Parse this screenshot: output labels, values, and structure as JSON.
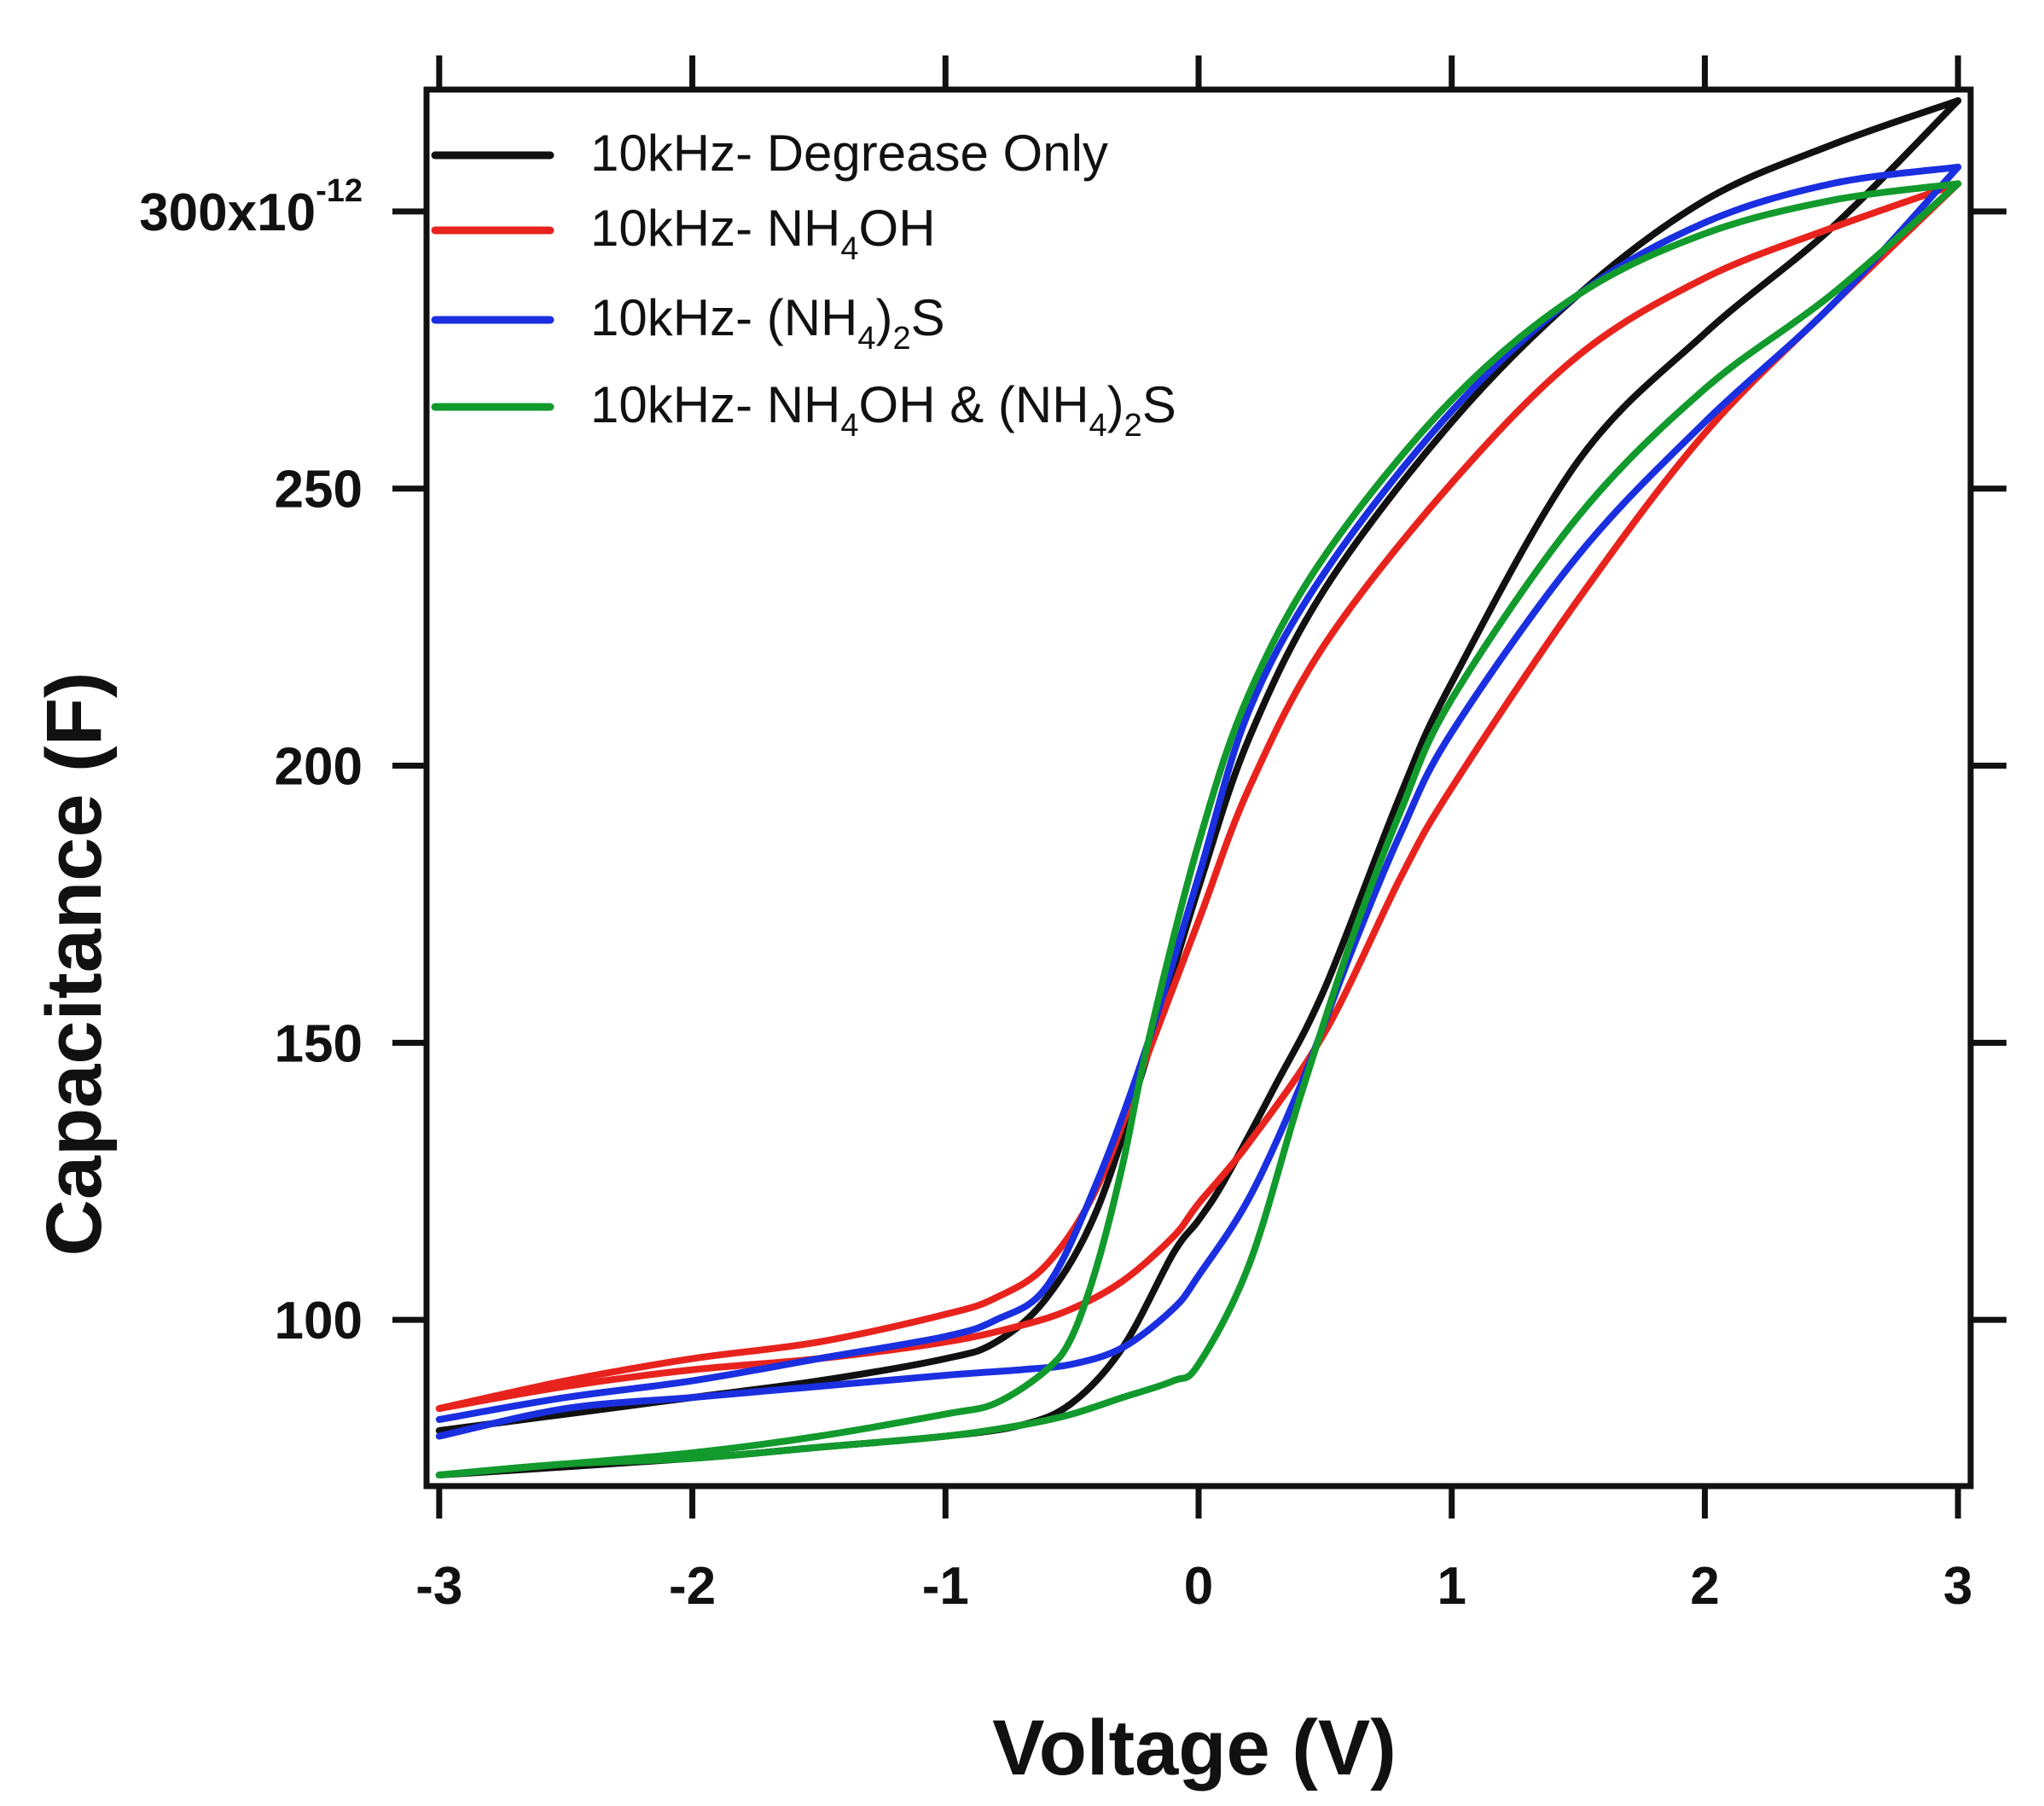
{
  "chart_data": {
    "type": "line",
    "xlabel": "Voltage (V)",
    "ylabel": "Capacitance (F)",
    "xlim": [
      -3.05,
      3.05
    ],
    "ylim": [
      70,
      322
    ],
    "x_ticks": [
      -3,
      -2,
      -1,
      0,
      1,
      2,
      3
    ],
    "x_tick_labels": [
      "-3",
      "-2",
      "-1",
      "0",
      "1",
      "2",
      "3"
    ],
    "y_ticks": [
      100,
      150,
      200,
      250,
      300
    ],
    "y_tick_labels": [
      "100",
      "150",
      "200",
      "250",
      "300"
    ],
    "y_top_label": {
      "base": "300x10",
      "exponent": "-12"
    },
    "legend": {
      "position": "top-left",
      "entries": [
        {
          "prefix": "10kHz- ",
          "parts": [
            "Degrease Only"
          ]
        },
        {
          "prefix": "10kHz- ",
          "parts": [
            "NH",
            "4",
            "OH"
          ]
        },
        {
          "prefix": "10kHz- ",
          "parts": [
            "(NH",
            "4",
            ")",
            "2",
            "S"
          ]
        },
        {
          "prefix": "10kHz- ",
          "parts": [
            "NH",
            "4",
            "OH & (NH",
            "4",
            ")",
            "2",
            "S"
          ]
        }
      ]
    },
    "series": [
      {
        "name": "10kHz- Degrease Only",
        "color": "#111111",
        "forward": {
          "x": [
            -3,
            -2,
            -1.5,
            -1,
            -0.7,
            -0.5,
            -0.3,
            -0.1,
            0,
            0.1,
            0.3,
            0.5,
            0.8,
            1.0,
            1.5,
            2.0,
            2.5,
            3.0
          ],
          "y": [
            72,
            75,
            77,
            79,
            81,
            85,
            95,
            112,
            118,
            125,
            142,
            160,
            195,
            215,
            255,
            278,
            297,
            320
          ]
        },
        "reverse": {
          "x": [
            3.0,
            2.5,
            2.0,
            1.5,
            1.0,
            0.5,
            0.2,
            0,
            -0.2,
            -0.4,
            -0.6,
            -0.8,
            -1.0,
            -1.5,
            -2.0,
            -2.5,
            -3.0
          ],
          "y": [
            320,
            312,
            302,
            285,
            262,
            232,
            205,
            178,
            148,
            120,
            104,
            96,
            93,
            89,
            86,
            83,
            80
          ]
        }
      },
      {
        "name": "10kHz- NH4OH",
        "color": "#e8231d",
        "forward": {
          "x": [
            -3,
            -2.5,
            -2,
            -1.5,
            -1,
            -0.7,
            -0.5,
            -0.3,
            -0.1,
            0,
            0.2,
            0.5,
            0.8,
            1.0,
            1.5,
            2.0,
            2.5,
            3.0
          ],
          "y": [
            84,
            88,
            91,
            93,
            96,
            99,
            102,
            107,
            115,
            121,
            132,
            152,
            180,
            196,
            230,
            260,
            283,
            305
          ]
        },
        "reverse": {
          "x": [
            3.0,
            2.5,
            2.0,
            1.5,
            1.0,
            0.5,
            0.2,
            0,
            -0.2,
            -0.4,
            -0.6,
            -0.8,
            -1.0,
            -1.5,
            -2.0,
            -2.5,
            -3.0
          ],
          "y": [
            305,
            297,
            288,
            274,
            251,
            222,
            196,
            172,
            148,
            124,
            110,
            104,
            101,
            96,
            93,
            89,
            84
          ]
        }
      },
      {
        "name": "10kHz- (NH4)2S",
        "color": "#1a2fe0",
        "forward": {
          "x": [
            -3,
            -2.5,
            -2,
            -1.5,
            -1,
            -0.7,
            -0.5,
            -0.3,
            -0.1,
            0,
            0.2,
            0.4,
            0.6,
            0.8,
            1.0,
            1.5,
            2.0,
            2.5,
            3.0
          ],
          "y": [
            79,
            84,
            86,
            88,
            90,
            91,
            92,
            95,
            102,
            108,
            122,
            142,
            166,
            188,
            206,
            238,
            262,
            283,
            308
          ]
        },
        "reverse": {
          "x": [
            3.0,
            2.5,
            2.0,
            1.5,
            1.0,
            0.5,
            0.2,
            0,
            -0.2,
            -0.4,
            -0.6,
            -0.8,
            -1.0,
            -1.5,
            -2.0,
            -2.5,
            -3.0
          ],
          "y": [
            308,
            305,
            298,
            285,
            264,
            235,
            210,
            180,
            150,
            125,
            106,
            100,
            97,
            93,
            89,
            86,
            82
          ]
        }
      },
      {
        "name": "10kHz- NH4OH & (NH4)2S",
        "color": "#129a2c",
        "forward": {
          "x": [
            -3,
            -2.5,
            -2,
            -1.5,
            -1,
            -0.7,
            -0.5,
            -0.3,
            -0.1,
            0,
            0.2,
            0.4,
            0.6,
            0.8,
            1.0,
            1.5,
            2.0,
            2.5,
            3.0
          ],
          "y": [
            72,
            74,
            75,
            77,
            79,
            81,
            83,
            86,
            89,
            92,
            110,
            140,
            168,
            192,
            212,
            245,
            268,
            285,
            305
          ]
        },
        "reverse": {
          "x": [
            3.0,
            2.5,
            2.0,
            1.5,
            1.0,
            0.5,
            0.2,
            0,
            -0.2,
            -0.3,
            -0.4,
            -0.5,
            -0.6,
            -0.8,
            -1.0,
            -1.5,
            -2.0,
            -2.5,
            -3.0
          ],
          "y": [
            305,
            302,
            296,
            285,
            266,
            238,
            213,
            186,
            150,
            128,
            110,
            97,
            91,
            85,
            83,
            79,
            76,
            74,
            72
          ]
        }
      }
    ]
  }
}
